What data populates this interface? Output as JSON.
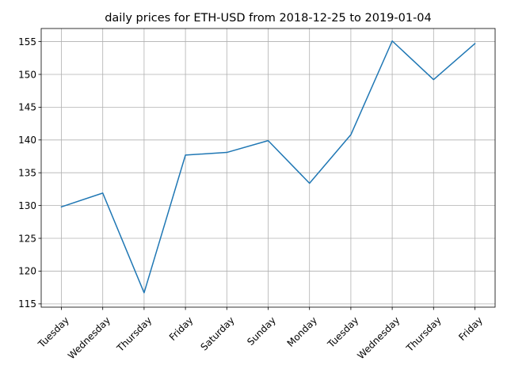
{
  "chart_data": {
    "type": "line",
    "title": "daily prices for ETH-USD from 2018-12-25 to 2019-01-04",
    "xlabel": "",
    "ylabel": "",
    "categories": [
      "Tuesday",
      "Wednesday",
      "Thursday",
      "Friday",
      "Saturday",
      "Sunday",
      "Monday",
      "Tuesday",
      "Wednesday",
      "Thursday",
      "Friday"
    ],
    "series": [
      {
        "values": [
          129.8,
          131.9,
          116.7,
          137.7,
          138.1,
          139.9,
          133.4,
          140.8,
          155.1,
          149.2,
          154.7
        ],
        "color": "#1f77b4"
      }
    ],
    "yticks": [
      115,
      120,
      125,
      130,
      135,
      140,
      145,
      150,
      155
    ],
    "ylim": [
      114.5,
      157.0
    ],
    "grid": true,
    "legend": "none"
  }
}
